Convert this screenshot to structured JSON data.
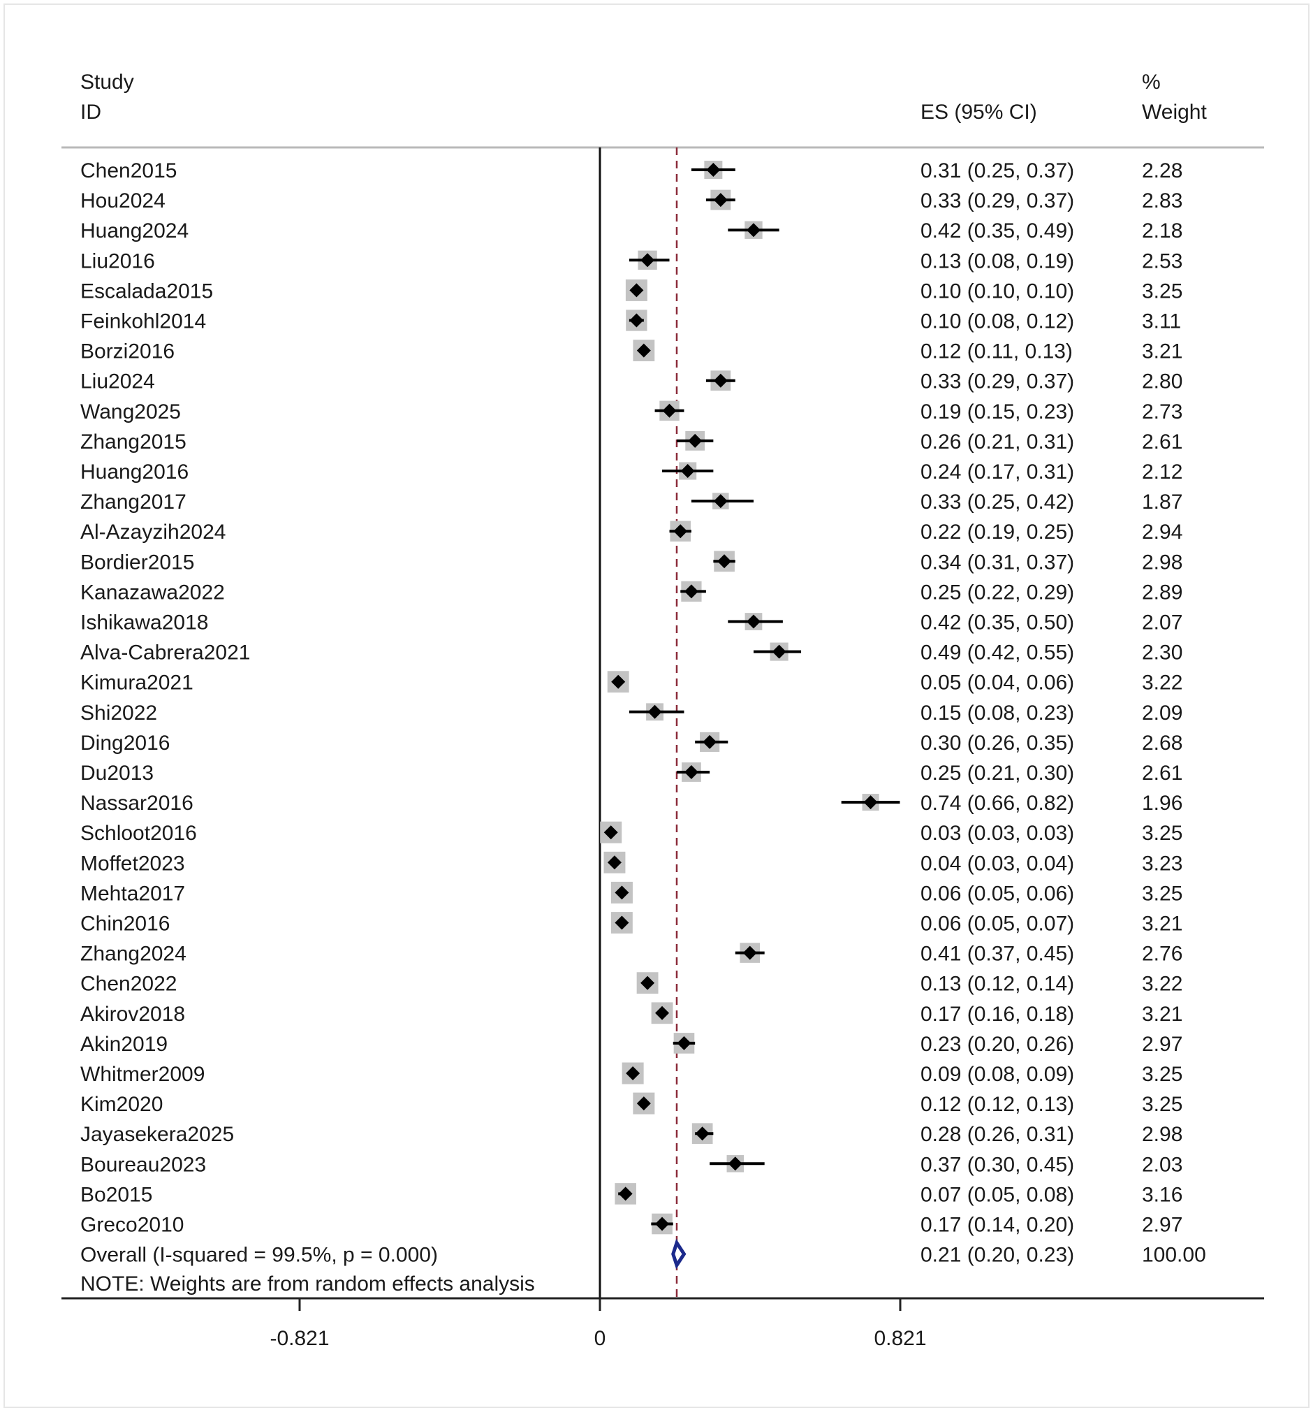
{
  "chart_data": {
    "type": "forest",
    "header": {
      "study_line1": "Study",
      "study_line2": "ID",
      "es_label": "ES (95% CI)",
      "weight_line1": "%",
      "weight_line2": "Weight"
    },
    "studies": [
      {
        "id": "Chen2015",
        "es": 0.31,
        "lo": 0.25,
        "hi": 0.37,
        "es_text": "0.31 (0.25, 0.37)",
        "weight": 2.28,
        "weight_text": "2.28"
      },
      {
        "id": "Hou2024",
        "es": 0.33,
        "lo": 0.29,
        "hi": 0.37,
        "es_text": "0.33 (0.29, 0.37)",
        "weight": 2.83,
        "weight_text": "2.83"
      },
      {
        "id": "Huang2024",
        "es": 0.42,
        "lo": 0.35,
        "hi": 0.49,
        "es_text": "0.42 (0.35, 0.49)",
        "weight": 2.18,
        "weight_text": "2.18"
      },
      {
        "id": "Liu2016",
        "es": 0.13,
        "lo": 0.08,
        "hi": 0.19,
        "es_text": "0.13 (0.08, 0.19)",
        "weight": 2.53,
        "weight_text": "2.53"
      },
      {
        "id": "Escalada2015",
        "es": 0.1,
        "lo": 0.1,
        "hi": 0.1,
        "es_text": "0.10 (0.10, 0.10)",
        "weight": 3.25,
        "weight_text": "3.25"
      },
      {
        "id": "Feinkohl2014",
        "es": 0.1,
        "lo": 0.08,
        "hi": 0.12,
        "es_text": "0.10 (0.08, 0.12)",
        "weight": 3.11,
        "weight_text": "3.11"
      },
      {
        "id": "Borzi2016",
        "es": 0.12,
        "lo": 0.11,
        "hi": 0.13,
        "es_text": "0.12 (0.11, 0.13)",
        "weight": 3.21,
        "weight_text": "3.21"
      },
      {
        "id": "Liu2024",
        "es": 0.33,
        "lo": 0.29,
        "hi": 0.37,
        "es_text": "0.33 (0.29, 0.37)",
        "weight": 2.8,
        "weight_text": "2.80"
      },
      {
        "id": "Wang2025",
        "es": 0.19,
        "lo": 0.15,
        "hi": 0.23,
        "es_text": "0.19 (0.15, 0.23)",
        "weight": 2.73,
        "weight_text": "2.73"
      },
      {
        "id": "Zhang2015",
        "es": 0.26,
        "lo": 0.21,
        "hi": 0.31,
        "es_text": "0.26 (0.21, 0.31)",
        "weight": 2.61,
        "weight_text": "2.61"
      },
      {
        "id": "Huang2016",
        "es": 0.24,
        "lo": 0.17,
        "hi": 0.31,
        "es_text": "0.24 (0.17, 0.31)",
        "weight": 2.12,
        "weight_text": "2.12"
      },
      {
        "id": "Zhang2017",
        "es": 0.33,
        "lo": 0.25,
        "hi": 0.42,
        "es_text": "0.33 (0.25, 0.42)",
        "weight": 1.87,
        "weight_text": "1.87"
      },
      {
        "id": "Al-Azayzih2024",
        "es": 0.22,
        "lo": 0.19,
        "hi": 0.25,
        "es_text": "0.22 (0.19, 0.25)",
        "weight": 2.94,
        "weight_text": "2.94"
      },
      {
        "id": "Bordier2015",
        "es": 0.34,
        "lo": 0.31,
        "hi": 0.37,
        "es_text": "0.34 (0.31, 0.37)",
        "weight": 2.98,
        "weight_text": "2.98"
      },
      {
        "id": "Kanazawa2022",
        "es": 0.25,
        "lo": 0.22,
        "hi": 0.29,
        "es_text": "0.25 (0.22, 0.29)",
        "weight": 2.89,
        "weight_text": "2.89"
      },
      {
        "id": "Ishikawa2018",
        "es": 0.42,
        "lo": 0.35,
        "hi": 0.5,
        "es_text": "0.42 (0.35, 0.50)",
        "weight": 2.07,
        "weight_text": "2.07"
      },
      {
        "id": "Alva-Cabrera2021",
        "es": 0.49,
        "lo": 0.42,
        "hi": 0.55,
        "es_text": "0.49 (0.42, 0.55)",
        "weight": 2.3,
        "weight_text": "2.30"
      },
      {
        "id": "Kimura2021",
        "es": 0.05,
        "lo": 0.04,
        "hi": 0.06,
        "es_text": "0.05 (0.04, 0.06)",
        "weight": 3.22,
        "weight_text": "3.22"
      },
      {
        "id": "Shi2022",
        "es": 0.15,
        "lo": 0.08,
        "hi": 0.23,
        "es_text": "0.15 (0.08, 0.23)",
        "weight": 2.09,
        "weight_text": "2.09"
      },
      {
        "id": "Ding2016",
        "es": 0.3,
        "lo": 0.26,
        "hi": 0.35,
        "es_text": "0.30 (0.26, 0.35)",
        "weight": 2.68,
        "weight_text": "2.68"
      },
      {
        "id": "Du2013",
        "es": 0.25,
        "lo": 0.21,
        "hi": 0.3,
        "es_text": "0.25 (0.21, 0.30)",
        "weight": 2.61,
        "weight_text": "2.61"
      },
      {
        "id": "Nassar2016",
        "es": 0.74,
        "lo": 0.66,
        "hi": 0.82,
        "es_text": "0.74 (0.66, 0.82)",
        "weight": 1.96,
        "weight_text": "1.96"
      },
      {
        "id": "Schloot2016",
        "es": 0.03,
        "lo": 0.03,
        "hi": 0.03,
        "es_text": "0.03 (0.03, 0.03)",
        "weight": 3.25,
        "weight_text": "3.25"
      },
      {
        "id": "Moffet2023",
        "es": 0.04,
        "lo": 0.03,
        "hi": 0.04,
        "es_text": "0.04 (0.03, 0.04)",
        "weight": 3.23,
        "weight_text": "3.23"
      },
      {
        "id": "Mehta2017",
        "es": 0.06,
        "lo": 0.05,
        "hi": 0.06,
        "es_text": "0.06 (0.05, 0.06)",
        "weight": 3.25,
        "weight_text": "3.25"
      },
      {
        "id": "Chin2016",
        "es": 0.06,
        "lo": 0.05,
        "hi": 0.07,
        "es_text": "0.06 (0.05, 0.07)",
        "weight": 3.21,
        "weight_text": "3.21"
      },
      {
        "id": "Zhang2024",
        "es": 0.41,
        "lo": 0.37,
        "hi": 0.45,
        "es_text": "0.41 (0.37, 0.45)",
        "weight": 2.76,
        "weight_text": "2.76"
      },
      {
        "id": "Chen2022",
        "es": 0.13,
        "lo": 0.12,
        "hi": 0.14,
        "es_text": "0.13 (0.12, 0.14)",
        "weight": 3.22,
        "weight_text": "3.22"
      },
      {
        "id": "Akirov2018",
        "es": 0.17,
        "lo": 0.16,
        "hi": 0.18,
        "es_text": "0.17 (0.16, 0.18)",
        "weight": 3.21,
        "weight_text": "3.21"
      },
      {
        "id": "Akin2019",
        "es": 0.23,
        "lo": 0.2,
        "hi": 0.26,
        "es_text": "0.23 (0.20, 0.26)",
        "weight": 2.97,
        "weight_text": "2.97"
      },
      {
        "id": "Whitmer2009",
        "es": 0.09,
        "lo": 0.08,
        "hi": 0.09,
        "es_text": "0.09 (0.08, 0.09)",
        "weight": 3.25,
        "weight_text": "3.25"
      },
      {
        "id": "Kim2020",
        "es": 0.12,
        "lo": 0.12,
        "hi": 0.13,
        "es_text": "0.12 (0.12, 0.13)",
        "weight": 3.25,
        "weight_text": "3.25"
      },
      {
        "id": "Jayasekera2025",
        "es": 0.28,
        "lo": 0.26,
        "hi": 0.31,
        "es_text": "0.28 (0.26, 0.31)",
        "weight": 2.98,
        "weight_text": "2.98"
      },
      {
        "id": "Boureau2023",
        "es": 0.37,
        "lo": 0.3,
        "hi": 0.45,
        "es_text": "0.37 (0.30, 0.45)",
        "weight": 2.03,
        "weight_text": "2.03"
      },
      {
        "id": "Bo2015",
        "es": 0.07,
        "lo": 0.05,
        "hi": 0.08,
        "es_text": "0.07 (0.05, 0.08)",
        "weight": 3.16,
        "weight_text": "3.16"
      },
      {
        "id": "Greco2010",
        "es": 0.17,
        "lo": 0.14,
        "hi": 0.2,
        "es_text": "0.17 (0.14, 0.20)",
        "weight": 2.97,
        "weight_text": "2.97"
      }
    ],
    "overall": {
      "label": "Overall  (I-squared = 99.5%, p = 0.000)",
      "es": 0.21,
      "lo": 0.2,
      "hi": 0.23,
      "es_text": "0.21 (0.20, 0.23)",
      "weight_text": "100.00"
    },
    "note": "NOTE: Weights are from random effects analysis",
    "x_ticks": [
      {
        "value": -0.821,
        "label": "-0.821"
      },
      {
        "value": 0,
        "label": "0"
      },
      {
        "value": 0.821,
        "label": "0.821"
      }
    ],
    "xlim": [
      -1.476,
      1.806
    ],
    "reference_line": 0,
    "colors": {
      "box": "#c3c3c3",
      "point": "#000000",
      "ci": "#000000",
      "overall_diamond": "#1c2a8c",
      "overall_line": "#8b2b3a",
      "rule": "#b9b9b9"
    }
  }
}
